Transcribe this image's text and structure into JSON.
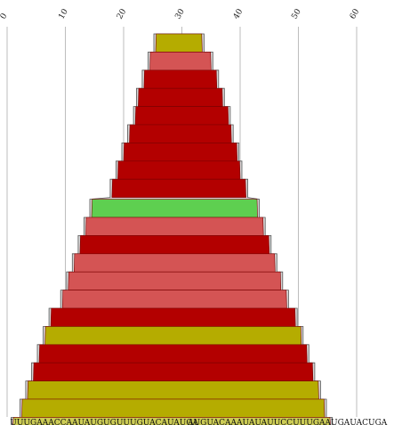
{
  "chart_data": {
    "type": "bar",
    "orientation": "horizontal-stacked-profile",
    "title": "",
    "xlabel": "",
    "ylabel": "",
    "xlim": [
      0,
      60
    ],
    "x_ticks": [
      0,
      10,
      20,
      30,
      40,
      50,
      60
    ],
    "x_tick_labels": [
      "0",
      "10",
      "20",
      "30",
      "40",
      "50",
      "60"
    ],
    "grid": true,
    "colors": {
      "olive": "#b5ac00",
      "pink": "#d45454",
      "red": "#b30000",
      "green": "#5ecf50",
      "base": "#cccc55"
    },
    "bands": [
      {
        "start": 25.5,
        "end": 33.5,
        "color": "olive"
      },
      {
        "start": 24.5,
        "end": 35.0,
        "color": "pink"
      },
      {
        "start": 23.5,
        "end": 36.0,
        "color": "red"
      },
      {
        "start": 22.5,
        "end": 37.0,
        "color": "red"
      },
      {
        "start": 22.0,
        "end": 38.0,
        "color": "red"
      },
      {
        "start": 21.0,
        "end": 38.5,
        "color": "red"
      },
      {
        "start": 20.0,
        "end": 39.5,
        "color": "red"
      },
      {
        "start": 19.0,
        "end": 40.0,
        "color": "red"
      },
      {
        "start": 18.0,
        "end": 41.0,
        "color": "red"
      },
      {
        "start": 14.5,
        "end": 43.0,
        "color": "green"
      },
      {
        "start": 13.5,
        "end": 44.0,
        "color": "pink"
      },
      {
        "start": 12.5,
        "end": 45.0,
        "color": "red"
      },
      {
        "start": 11.5,
        "end": 46.0,
        "color": "pink"
      },
      {
        "start": 10.5,
        "end": 47.0,
        "color": "pink"
      },
      {
        "start": 9.5,
        "end": 48.0,
        "color": "pink"
      },
      {
        "start": 7.5,
        "end": 49.5,
        "color": "red"
      },
      {
        "start": 6.5,
        "end": 50.5,
        "color": "olive"
      },
      {
        "start": 5.5,
        "end": 51.5,
        "color": "red"
      },
      {
        "start": 4.5,
        "end": 52.5,
        "color": "red"
      },
      {
        "start": 3.5,
        "end": 53.5,
        "color": "olive"
      },
      {
        "start": 2.5,
        "end": 54.5,
        "color": "olive"
      },
      {
        "start": 1.0,
        "end": 55.5,
        "color": "base"
      }
    ],
    "sequence_labels": [
      {
        "text": "UUUGAAACCAAUAUGUGUUUGUACAUAUGA",
        "x": 0.5
      },
      {
        "text": "AUGUACAAAUAUAUUCCUUUGAAUGAUACUGA",
        "x": 31.0
      }
    ]
  }
}
